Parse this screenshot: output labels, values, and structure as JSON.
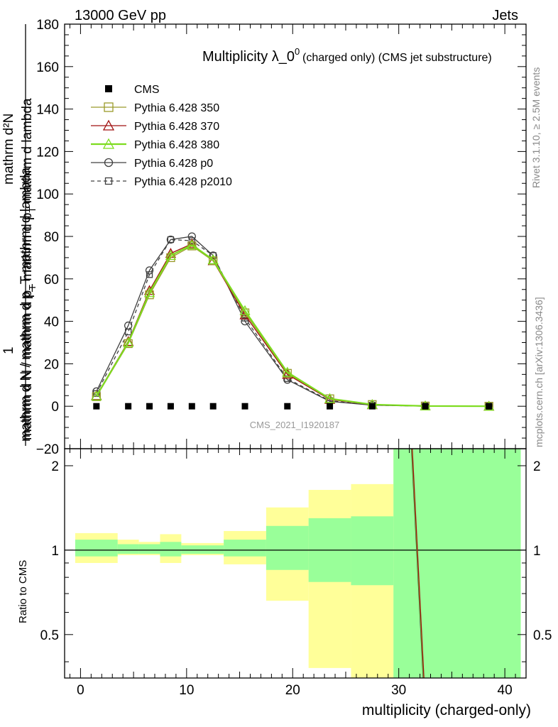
{
  "header": {
    "energy_label": "13000 GeV pp",
    "process_label": "Jets"
  },
  "side_labels": {
    "rivet": "Rivet 3.1.10, ≥ 2.5M events",
    "mcplots": "mcplots.cern.ch [arXiv:1306.3436]"
  },
  "main_plot": {
    "title_main": "Multiplicity λ_0",
    "title_sup": "0",
    "title_suffix": "(charged only) (CMS jet substructure)",
    "ylabel_numer": "mathrm d²N",
    "ylabel_one": "1",
    "ylabel_denom": "mathrm d N / mathrm d p_T mathrm d lambda",
    "watermark": "CMS_2021_I1920187"
  },
  "ratio_plot": {
    "ylabel": "Ratio to CMS",
    "xlabel": "multiplicity (charged-only)"
  },
  "legend": [
    {
      "label": "CMS",
      "color": "#000000",
      "marker": "filled-square",
      "line": "none"
    },
    {
      "label": "Pythia 6.428 350",
      "color": "#9a9a2a",
      "marker": "open-square",
      "line": "solid"
    },
    {
      "label": "Pythia 6.428 370",
      "color": "#a01010",
      "marker": "open-triangle",
      "line": "solid"
    },
    {
      "label": "Pythia 6.428 380",
      "color": "#7ddc1f",
      "marker": "open-triangle",
      "line": "solid"
    },
    {
      "label": "Pythia 6.428 p0",
      "color": "#404040",
      "marker": "open-circle",
      "line": "solid"
    },
    {
      "label": "Pythia 6.428 p2010",
      "color": "#404040",
      "marker": "open-square-small",
      "line": "dashed"
    }
  ],
  "chart_data": [
    {
      "type": "line",
      "x": [
        1.5,
        4.5,
        6.5,
        8.5,
        10.5,
        12.5,
        15.5,
        19.5,
        23.5,
        27.5,
        32.5,
        38.5
      ],
      "xlim": [
        -1.5,
        42
      ],
      "ylim": [
        -20,
        180
      ],
      "xticks": [
        0,
        10,
        20,
        30,
        40
      ],
      "yticks": [
        -20,
        0,
        20,
        40,
        60,
        80,
        100,
        120,
        140,
        160,
        180
      ],
      "series": [
        {
          "name": "CMS",
          "values": [
            0,
            0,
            0,
            0,
            0,
            0,
            0,
            0,
            0,
            0,
            0,
            0
          ]
        },
        {
          "name": "Pythia 6.428 350",
          "values": [
            4.5,
            29.5,
            52.5,
            70,
            75.5,
            68.5,
            44,
            15.5,
            3.5,
            0.8,
            0.1,
            0
          ]
        },
        {
          "name": "Pythia 6.428 370",
          "values": [
            5,
            30.5,
            54.5,
            72,
            76.5,
            68.5,
            43,
            15,
            3.2,
            0.7,
            0.1,
            0
          ]
        },
        {
          "name": "Pythia 6.428 380",
          "values": [
            4.8,
            30,
            53.5,
            71,
            76,
            69,
            45,
            16,
            3.6,
            0.8,
            0.1,
            0
          ]
        },
        {
          "name": "Pythia 6.428 p0",
          "values": [
            7,
            38,
            64,
            78.5,
            80,
            71,
            40,
            12.5,
            2.3,
            0.5,
            0.05,
            0
          ]
        },
        {
          "name": "Pythia 6.428 p2010",
          "values": [
            6,
            35,
            62,
            78.5,
            78,
            71,
            41.5,
            13,
            2.6,
            0.5,
            0.05,
            0
          ]
        }
      ]
    },
    {
      "type": "area",
      "name": "ratio to CMS",
      "xlim": [
        -1.5,
        42
      ],
      "ylim": [
        0.35,
        2.3
      ],
      "yscale": "log",
      "yticks": [
        0.5,
        1,
        2
      ],
      "xticks": [
        0,
        10,
        20,
        30,
        40
      ],
      "bins": [
        {
          "lo": -0.5,
          "hi": 3.5,
          "inner": [
            0.95,
            1.09
          ],
          "outer": [
            0.9,
            1.15
          ]
        },
        {
          "lo": 3.5,
          "hi": 5.5,
          "inner": [
            0.97,
            1.05
          ],
          "outer": [
            0.96,
            1.09
          ]
        },
        {
          "lo": 5.5,
          "hi": 7.5,
          "inner": [
            0.97,
            1.05
          ],
          "outer": [
            0.96,
            1.07
          ]
        },
        {
          "lo": 7.5,
          "hi": 9.5,
          "inner": [
            0.95,
            1.07
          ],
          "outer": [
            0.9,
            1.14
          ]
        },
        {
          "lo": 9.5,
          "hi": 13.5,
          "inner": [
            0.97,
            1.04
          ],
          "outer": [
            0.96,
            1.06
          ]
        },
        {
          "lo": 13.5,
          "hi": 17.5,
          "inner": [
            0.95,
            1.09
          ],
          "outer": [
            0.89,
            1.17
          ]
        },
        {
          "lo": 17.5,
          "hi": 21.5,
          "inner": [
            0.85,
            1.22
          ],
          "outer": [
            0.66,
            1.42
          ]
        },
        {
          "lo": 21.5,
          "hi": 25.5,
          "inner": [
            0.77,
            1.3
          ],
          "outer": [
            0.38,
            1.64
          ]
        },
        {
          "lo": 25.5,
          "hi": 29.5,
          "inner": [
            0.75,
            1.32
          ],
          "outer": [
            0.35,
            1.72
          ]
        },
        {
          "lo": 29.5,
          "hi": 41.5,
          "inner": [
            0.35,
            2.3
          ],
          "outer": [
            0.35,
            2.3
          ]
        }
      ],
      "ratio_line": {
        "x1": 31.2,
        "y1": 2.3,
        "x2": 32.3,
        "y2": 0.35
      }
    }
  ],
  "colors": {
    "band_inner": "#99ff99",
    "band_outer": "#ffff99",
    "frame": "#000000"
  }
}
